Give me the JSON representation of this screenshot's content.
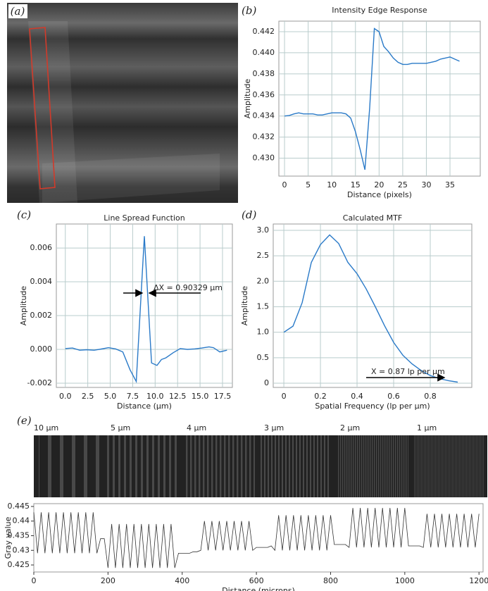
{
  "image_panel": {
    "panel": "(a)"
  },
  "strip": {
    "panel": "(e)",
    "labels": [
      "10 μm",
      "5 μm",
      "4 μm",
      "3 μm",
      "2 μm",
      "1 μm"
    ]
  },
  "chart_data": [
    {
      "type": "line",
      "panel": "(b)",
      "title": "Intensity Edge Response",
      "x_label": "Distance (pixels)",
      "y_label": "Amplitude",
      "grid": true,
      "color": "#2a7ac8",
      "x": [
        0,
        1,
        2,
        3,
        4,
        5,
        6,
        7,
        8,
        9,
        10,
        11,
        12,
        13,
        14,
        15,
        16,
        17,
        18,
        19,
        20,
        21,
        22,
        23,
        24,
        25,
        26,
        27,
        28,
        29,
        30,
        31,
        32,
        33,
        34,
        35,
        36,
        37
      ],
      "values": [
        0.434,
        0.43405,
        0.4342,
        0.4343,
        0.4342,
        0.4342,
        0.4342,
        0.4341,
        0.4341,
        0.4342,
        0.4343,
        0.4343,
        0.4343,
        0.4342,
        0.4338,
        0.4325,
        0.4308,
        0.4289,
        0.4347,
        0.4423,
        0.442,
        0.4406,
        0.4401,
        0.4395,
        0.4391,
        0.4389,
        0.4389,
        0.439,
        0.439,
        0.439,
        0.439,
        0.4391,
        0.4392,
        0.4394,
        0.4395,
        0.4396,
        0.4394,
        0.4392
      ],
      "xlim": [
        -1.2,
        41.4
      ],
      "xticks": [
        0,
        5,
        10,
        15,
        20,
        25,
        30,
        35
      ],
      "ylim": [
        0.4283,
        0.443
      ],
      "yticks": [
        {
          "value": 0.43,
          "label": "0.430"
        },
        0.432,
        0.434,
        0.436,
        0.438,
        {
          "value": 0.44,
          "label": "0.440"
        },
        0.442
      ]
    },
    {
      "type": "line",
      "panel": "(c)",
      "title": "Line Spread Function",
      "x_label": "Distance (μm)",
      "y_label": "Amplitude",
      "grid": true,
      "color": "#2a7ac8",
      "annotation": "ΔX = 0.90329 μm",
      "x": [
        0,
        0.8,
        1.6,
        2.4,
        3.2,
        4,
        4.8,
        5.6,
        6.4,
        7.2,
        7.9,
        8.8,
        9.6,
        10.2,
        10.7,
        11.2,
        12,
        12.8,
        13.6,
        14.4,
        15.2,
        16,
        16.5,
        17.2,
        18
      ],
      "values": [
        5e-05,
        8e-05,
        -5e-05,
        -2e-05,
        -5e-05,
        2e-05,
        0.0001,
        3e-05,
        -0.00015,
        -0.0012,
        -0.0019,
        0.0067,
        -0.0008,
        -0.00095,
        -0.0006,
        -0.0005,
        -0.0002,
        5e-05,
        0,
        3e-05,
        8e-05,
        0.00015,
        0.0001,
        -0.00015,
        -5e-05
      ],
      "xlim": [
        -1.0,
        18.6
      ],
      "xticks": [
        {
          "value": 0,
          "label": "0.0"
        },
        2.5,
        {
          "value": 5,
          "label": "5.0"
        },
        7.5,
        {
          "value": 10,
          "label": "10.0"
        },
        12.5,
        {
          "value": 15,
          "label": "15.0"
        },
        17.5
      ],
      "ylim": [
        -0.00225,
        0.00742
      ],
      "yticks": [
        -0.002,
        {
          "value": 0,
          "label": "0.000"
        },
        0.002,
        0.004,
        0.006
      ]
    },
    {
      "type": "line",
      "panel": "(d)",
      "title": "Calculated MTF",
      "x_label": "Spatial Frequency (lp per μm)",
      "y_label": "Amplitude",
      "grid": true,
      "color": "#2a7ac8",
      "annotation": "X = 0.87 lp per μm",
      "x": [
        0,
        0.05,
        0.1,
        0.15,
        0.2,
        0.25,
        0.3,
        0.35,
        0.4,
        0.45,
        0.5,
        0.55,
        0.6,
        0.65,
        0.7,
        0.75,
        0.8,
        0.85,
        0.9,
        0.95
      ],
      "values": [
        1.0,
        1.12,
        1.58,
        2.37,
        2.72,
        2.91,
        2.74,
        2.37,
        2.15,
        1.85,
        1.5,
        1.13,
        0.8,
        0.55,
        0.38,
        0.25,
        0.15,
        0.09,
        0.05,
        0.02
      ],
      "xlim": [
        -0.058,
        1.027
      ],
      "xticks": [
        0,
        0.2,
        0.4,
        0.6,
        0.8
      ],
      "ylim": [
        -0.083,
        3.124
      ],
      "yticks": [
        0,
        0.5,
        {
          "value": 1,
          "label": "1.0"
        },
        1.5,
        {
          "value": 2,
          "label": "2.0"
        },
        2.5,
        {
          "value": 3,
          "label": "3.0"
        }
      ]
    },
    {
      "type": "line",
      "x_label": "Distance (microns)",
      "y_label": "Gray value",
      "grid": false,
      "color": "#333333",
      "x": [
        0,
        10,
        20,
        30,
        40,
        50,
        60,
        70,
        80,
        90,
        100,
        110,
        120,
        130,
        140,
        150,
        160,
        170,
        180,
        190,
        200,
        210,
        220,
        230,
        240,
        250,
        260,
        270,
        280,
        290,
        300,
        310,
        320,
        330,
        340,
        350,
        360,
        370,
        380,
        390,
        400,
        410,
        420,
        430,
        440,
        450,
        460,
        470,
        480,
        490,
        500,
        510,
        520,
        530,
        540,
        550,
        560,
        570,
        580,
        590,
        600,
        610,
        620,
        630,
        640,
        650,
        660,
        670,
        680,
        690,
        700,
        710,
        720,
        730,
        740,
        750,
        760,
        770,
        780,
        790,
        800,
        810,
        820,
        830,
        840,
        850,
        860,
        870,
        880,
        890,
        900,
        910,
        920,
        930,
        940,
        950,
        960,
        970,
        980,
        990,
        1000,
        1010,
        1020,
        1030,
        1040,
        1050,
        1060,
        1070,
        1080,
        1090,
        1100,
        1110,
        1120,
        1130,
        1140,
        1150,
        1160,
        1170,
        1180,
        1190,
        1200
      ],
      "values": [
        0.443,
        0.429,
        0.443,
        0.429,
        0.443,
        0.429,
        0.443,
        0.429,
        0.443,
        0.429,
        0.443,
        0.429,
        0.443,
        0.429,
        0.443,
        0.429,
        0.443,
        0.429,
        0.434,
        0.434,
        0.424,
        0.439,
        0.424,
        0.439,
        0.424,
        0.439,
        0.424,
        0.439,
        0.424,
        0.439,
        0.424,
        0.439,
        0.424,
        0.439,
        0.424,
        0.439,
        0.424,
        0.439,
        0.424,
        0.429,
        0.429,
        0.429,
        0.429,
        0.4295,
        0.4295,
        0.43,
        0.44,
        0.43,
        0.44,
        0.43,
        0.44,
        0.43,
        0.44,
        0.43,
        0.44,
        0.43,
        0.44,
        0.43,
        0.44,
        0.43,
        0.431,
        0.431,
        0.431,
        0.431,
        0.4315,
        0.43,
        0.442,
        0.43,
        0.442,
        0.43,
        0.442,
        0.43,
        0.442,
        0.43,
        0.442,
        0.43,
        0.442,
        0.43,
        0.442,
        0.43,
        0.442,
        0.432,
        0.432,
        0.432,
        0.432,
        0.431,
        0.4445,
        0.431,
        0.4445,
        0.431,
        0.4445,
        0.431,
        0.4445,
        0.431,
        0.4445,
        0.431,
        0.4445,
        0.431,
        0.4445,
        0.431,
        0.4445,
        0.4315,
        0.4315,
        0.4315,
        0.4315,
        0.431,
        0.4425,
        0.431,
        0.4425,
        0.431,
        0.4425,
        0.431,
        0.4425,
        0.431,
        0.4425,
        0.431,
        0.4425,
        0.431,
        0.4425,
        0.431,
        0.4425
      ],
      "xlim": [
        0,
        1211
      ],
      "xticks": [
        0,
        200,
        400,
        600,
        800,
        1000,
        1200
      ],
      "ylim": [
        0.4226,
        0.44596
      ],
      "yticks": [
        0.425,
        0.43,
        0.435,
        0.44,
        0.445
      ]
    }
  ]
}
